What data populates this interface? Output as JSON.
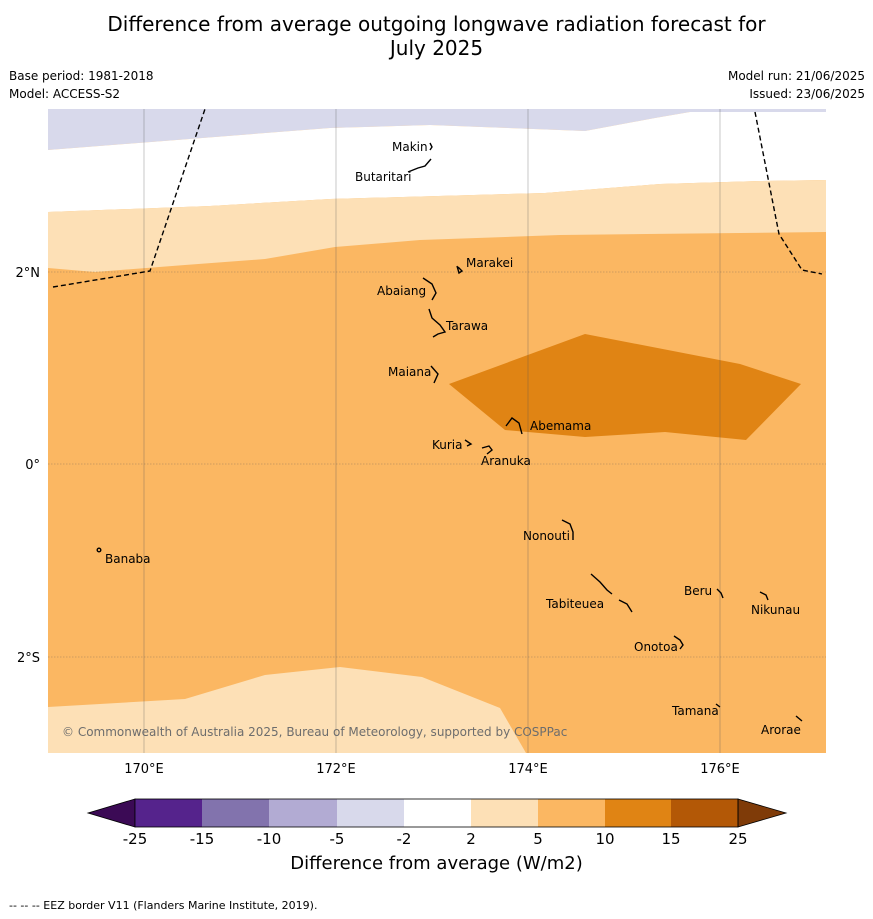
{
  "title_line1": "Difference from average outgoing longwave radiation forecast for",
  "title_line2": "July 2025",
  "meta_left": [
    "Base period: 1981-2018",
    "Model: ACCESS-S2"
  ],
  "meta_right": [
    "Model run: 21/06/2025",
    "Issued: 23/06/2025"
  ],
  "copyright": "© Commonwealth of Australia 2025, Bureau of Meteorology, supported by COSPPac",
  "lat_labels": [
    "2°N",
    "0°",
    "2°S"
  ],
  "lon_labels": [
    "170°E",
    "172°E",
    "174°E",
    "176°E"
  ],
  "islands": [
    "Makin",
    "Butaritari",
    "Marakei",
    "Abaiang",
    "Tarawa",
    "Maiana",
    "Abemama",
    "Kuria",
    "Aranuka",
    "Nonouti",
    "Banaba",
    "Tabiteuea",
    "Beru",
    "Nikunau",
    "Onotoa",
    "Tamana",
    "Arorae"
  ],
  "colorbar": {
    "ticks": [
      "-25",
      "-15",
      "-10",
      "-5",
      "-2",
      "2",
      "5",
      "10",
      "15",
      "25"
    ],
    "colors": [
      "#3b0a55",
      "#55238c",
      "#8273ad",
      "#b2abd3",
      "#d8d9eb",
      "#ffffff",
      "#fde0b6",
      "#fbb762",
      "#e08414",
      "#b35806",
      "#7f3b08"
    ],
    "label": "Difference from average (W/m2)"
  },
  "footer": "-- -- -- EEZ border V11 (Flanders Marine Institute, 2019)."
}
